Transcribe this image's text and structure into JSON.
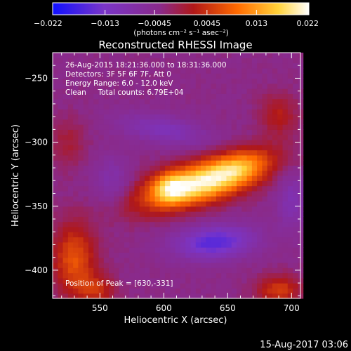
{
  "chart_data": {
    "type": "heatmap",
    "title": "Reconstructed RHESSI Image",
    "xlabel": "Heliocentric X (arcsec)",
    "ylabel": "Heliocentric Y (arcsec)",
    "xlim": [
      513,
      707
    ],
    "ylim": [
      -422,
      -230
    ],
    "x_ticks": [
      550,
      600,
      650,
      700
    ],
    "y_ticks": [
      -250,
      -300,
      -350,
      -400
    ],
    "colorbar": {
      "range": [
        -0.022,
        0.022
      ],
      "tick_values": [
        -0.022,
        -0.013,
        -0.0045,
        0.0045,
        0.013,
        0.022
      ],
      "tick_labels": [
        "−0.022",
        "−0.013",
        "−0.0045",
        "0.0045",
        "0.013",
        "0.022"
      ],
      "unit_label": "(photons cm⁻² s⁻¹ asec⁻²)",
      "colors": [
        "#1010ff",
        "#7a35c8",
        "#8a2a8a",
        "#b01818",
        "#ff6a00",
        "#ffd23a",
        "#ffffff"
      ]
    },
    "sources": [
      {
        "x": 630,
        "y": -331,
        "sx": 34,
        "sy": 11,
        "angle": 16,
        "amp": 0.024
      },
      {
        "x": 605,
        "y": -335,
        "sx": 9,
        "sy": 8,
        "angle": 0,
        "amp": 0.009
      },
      {
        "x": 660,
        "y": -318,
        "sx": 16,
        "sy": 9,
        "angle": 20,
        "amp": 0.006
      },
      {
        "x": 530,
        "y": -392,
        "sx": 12,
        "sy": 20,
        "angle": 0,
        "amp": 0.011
      },
      {
        "x": 548,
        "y": -415,
        "sx": 10,
        "sy": 8,
        "angle": 0,
        "amp": 0.007
      },
      {
        "x": 690,
        "y": -415,
        "sx": 12,
        "sy": 8,
        "angle": 0,
        "amp": 0.009
      },
      {
        "x": 690,
        "y": -278,
        "sx": 10,
        "sy": 12,
        "angle": 0,
        "amp": 0.006
      },
      {
        "x": 525,
        "y": -300,
        "sx": 10,
        "sy": 14,
        "angle": 0,
        "amp": 0.004
      },
      {
        "x": 640,
        "y": -378,
        "sx": 22,
        "sy": 9,
        "angle": 5,
        "amp": -0.013
      },
      {
        "x": 600,
        "y": -290,
        "sx": 25,
        "sy": 8,
        "angle": -10,
        "amp": -0.007
      },
      {
        "x": 700,
        "y": -345,
        "sx": 8,
        "sy": 16,
        "angle": 0,
        "amp": -0.006
      },
      {
        "x": 560,
        "y": -330,
        "sx": 10,
        "sy": 14,
        "angle": 0,
        "amp": -0.005
      }
    ],
    "background_level": -0.0035,
    "annotations": [
      "26-Aug-2015 18:21:36.000 to 18:31:36.000",
      "Detectors: 3F 5F 6F 7F, Att 0",
      "Energy Range: 6.0 - 12.0 keV",
      "Clean     Total counts: 6.79E+04"
    ],
    "peak_label": "Position of Peak = [630,-331]",
    "footer_timestamp": "15-Aug-2017 03:06"
  }
}
